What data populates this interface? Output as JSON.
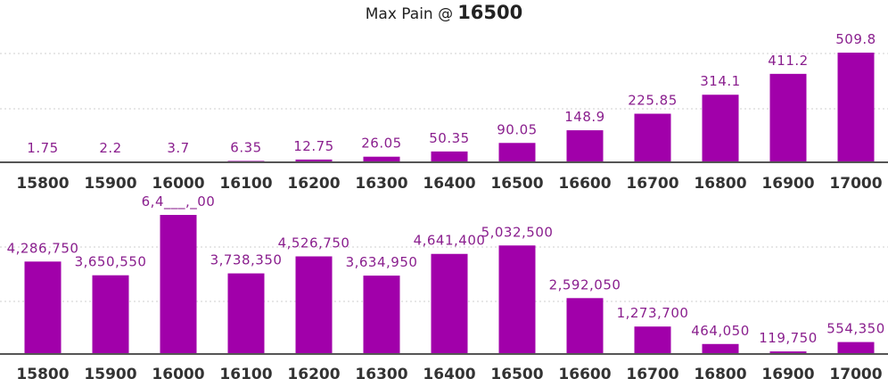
{
  "header": {
    "label": "Max Pain @",
    "value": "16500"
  },
  "colors": {
    "bar": "#a100aa",
    "data_label": "#8a1f8e",
    "axis": "#555555",
    "grid": "#cfcfcf"
  },
  "chart_data": [
    {
      "type": "bar",
      "title": "",
      "categories": [
        "15800",
        "15900",
        "16000",
        "16100",
        "16200",
        "16300",
        "16400",
        "16500",
        "16600",
        "16700",
        "16800",
        "16900",
        "17000"
      ],
      "values": [
        1.75,
        2.2,
        3.7,
        6.35,
        12.75,
        26.05,
        50.35,
        90.05,
        148.9,
        225.85,
        314.1,
        411.2,
        509.8
      ],
      "labels": [
        "1.75",
        "2.2",
        "3.7",
        "6.35",
        "12.75",
        "26.05",
        "50.35",
        "90.05",
        "148.9",
        "225.85",
        "314.1",
        "411.2",
        "509.8"
      ],
      "ylim": [
        0,
        510
      ],
      "grid": true
    },
    {
      "type": "bar",
      "title": "",
      "categories": [
        "15800",
        "15900",
        "16000",
        "16100",
        "16200",
        "16300",
        "16400",
        "16500",
        "16600",
        "16700",
        "16800",
        "16900",
        "17000"
      ],
      "values": [
        4286750,
        3650550,
        6450000,
        3738350,
        4526750,
        3634950,
        4641400,
        5032500,
        2592050,
        1273700,
        464050,
        119750,
        554350
      ],
      "labels": [
        "4,286,750",
        "3,650,550",
        "6,4___,_00",
        "3,738,350",
        "4,526,750",
        "3,634,950",
        "4,641,400",
        "5,032,500",
        "2,592,050",
        "1,273,700",
        "464,050",
        "119,750",
        "554,350"
      ],
      "ylim": [
        0,
        6450000
      ],
      "grid": true
    }
  ]
}
